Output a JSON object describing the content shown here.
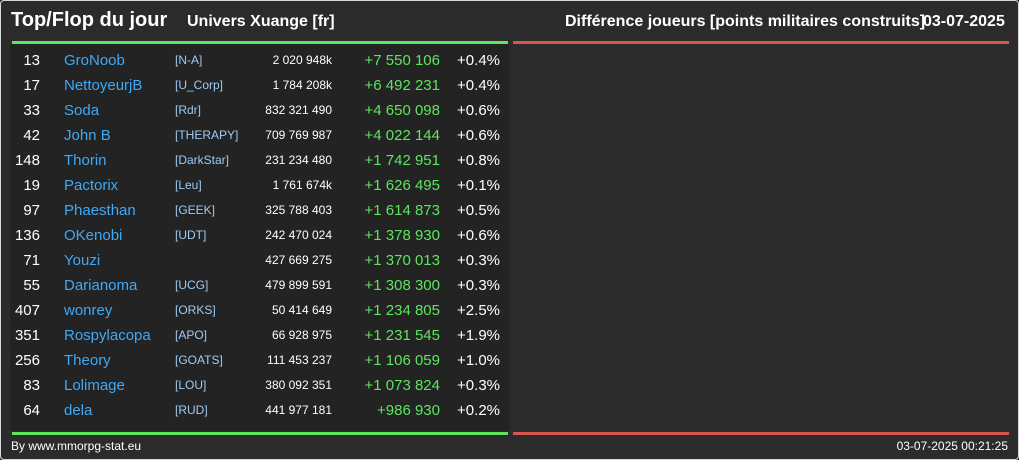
{
  "header": {
    "title": "Top/Flop du jour",
    "universe": "Univers Xuange [fr]",
    "metric": "Différence joueurs [points militaires construits]",
    "date": "03-07-2025"
  },
  "colors": {
    "top_accent": "#5ce65c",
    "flop_accent": "#d9534f",
    "player_link": "#3fa9f5",
    "positive": "#5ce65c"
  },
  "top": [
    {
      "rank": "13",
      "name": "GroNoob",
      "ally": "[N-A]",
      "points": "2 020 948k",
      "diff": "+7 550 106",
      "pct": "+0.4%"
    },
    {
      "rank": "17",
      "name": "NettoyeurjB",
      "ally": "[U_Corp]",
      "points": "1 784 208k",
      "diff": "+6 492 231",
      "pct": "+0.4%"
    },
    {
      "rank": "33",
      "name": "Soda",
      "ally": "[Rdr]",
      "points": "832 321 490",
      "diff": "+4 650 098",
      "pct": "+0.6%"
    },
    {
      "rank": "42",
      "name": "John B",
      "ally": "[THERAPY]",
      "points": "709 769 987",
      "diff": "+4 022 144",
      "pct": "+0.6%"
    },
    {
      "rank": "148",
      "name": "Thorin",
      "ally": "[DarkStar]",
      "points": "231 234 480",
      "diff": "+1 742 951",
      "pct": "+0.8%"
    },
    {
      "rank": "19",
      "name": "Pactorix",
      "ally": "[Leu]",
      "points": "1 761 674k",
      "diff": "+1 626 495",
      "pct": "+0.1%"
    },
    {
      "rank": "97",
      "name": "Phaesthan",
      "ally": "[GEEK]",
      "points": "325 788 403",
      "diff": "+1 614 873",
      "pct": "+0.5%"
    },
    {
      "rank": "136",
      "name": "OKenobi",
      "ally": "[UDT]",
      "points": "242 470 024",
      "diff": "+1 378 930",
      "pct": "+0.6%"
    },
    {
      "rank": "71",
      "name": "Youzi",
      "ally": "",
      "points": "427 669 275",
      "diff": "+1 370 013",
      "pct": "+0.3%"
    },
    {
      "rank": "55",
      "name": "Darianoma",
      "ally": "[UCG]",
      "points": "479 899 591",
      "diff": "+1 308 300",
      "pct": "+0.3%"
    },
    {
      "rank": "407",
      "name": "wonrey",
      "ally": "[ORKS]",
      "points": "50 414 649",
      "diff": "+1 234 805",
      "pct": "+2.5%"
    },
    {
      "rank": "351",
      "name": "Rospylacopa",
      "ally": "[APO]",
      "points": "66 928 975",
      "diff": "+1 231 545",
      "pct": "+1.9%"
    },
    {
      "rank": "256",
      "name": "Theory",
      "ally": "[GOATS]",
      "points": "111 453 237",
      "diff": "+1 106 059",
      "pct": "+1.0%"
    },
    {
      "rank": "83",
      "name": "Lolimage",
      "ally": "[LOU]",
      "points": "380 092 351",
      "diff": "+1 073 824",
      "pct": "+0.3%"
    },
    {
      "rank": "64",
      "name": "dela",
      "ally": "[RUD]",
      "points": "441 977 181",
      "diff": "+986 930",
      "pct": "+0.2%"
    }
  ],
  "flop": [],
  "footer": {
    "credit": "By www.mmorpg-stat.eu",
    "generated": "03-07-2025 00:21:25"
  }
}
